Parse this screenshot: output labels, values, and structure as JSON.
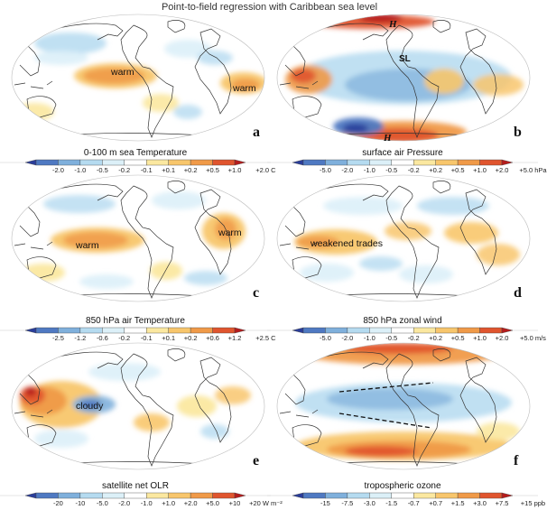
{
  "figure": {
    "title": "Point-to-field regression with Caribbean sea level"
  },
  "colors": {
    "dark_blue": "#2a3d9a",
    "blue": "#4f79c2",
    "mid_blue": "#7fb0dc",
    "light_blue": "#b5dbf0",
    "pale_blue": "#dcf0f8",
    "white": "#ffffff",
    "pale_yellow": "#fbe8a0",
    "light_orange": "#f8c66c",
    "orange": "#f09a48",
    "red_orange": "#e0552e",
    "dark_red": "#b51c1c"
  },
  "panels": [
    {
      "letter": "a",
      "annotations": [
        "warm",
        "warm"
      ],
      "colorbar": {
        "title": "0-100 m sea Temperature",
        "ticks": [
          "-2.0",
          "-1.0",
          "-0.5",
          "-0.2",
          "-0.1",
          "+0.1",
          "+0.2",
          "+0.5",
          "+1.0",
          "+2.0 C"
        ]
      }
    },
    {
      "letter": "b",
      "annotations": [
        "H",
        "SL",
        "H"
      ],
      "colorbar": {
        "title": "surface air Pressure",
        "ticks": [
          "-5.0",
          "-2.0",
          "-1.0",
          "-0.5",
          "-0.2",
          "+0.2",
          "+0.5",
          "+1.0",
          "+2.0",
          "+5.0 hPa"
        ]
      }
    },
    {
      "letter": "c",
      "annotations": [
        "warm",
        "warm"
      ],
      "colorbar": {
        "title": "850 hPa air Temperature",
        "ticks": [
          "-2.5",
          "-1.2",
          "-0.6",
          "-0.2",
          "-0.1",
          "+0.1",
          "+0.2",
          "+0.6",
          "+1.2",
          "+2.5 C"
        ]
      }
    },
    {
      "letter": "d",
      "annotations": [
        "weakened trades"
      ],
      "colorbar": {
        "title": "850 hPa zonal wind",
        "ticks": [
          "-5.0",
          "-2.0",
          "-1.0",
          "-0.5",
          "-0.2",
          "+0.2",
          "+0.5",
          "+1.0",
          "+2.0",
          "+5.0 m/s"
        ]
      }
    },
    {
      "letter": "e",
      "annotations": [
        "cloudy"
      ],
      "colorbar": {
        "title": "satellite net OLR",
        "ticks": [
          "-20",
          "-10",
          "-5.0",
          "-2.0",
          "-1.0",
          "+1.0",
          "+2.0",
          "+5.0",
          "+10",
          "+20 W m⁻²"
        ]
      }
    },
    {
      "letter": "f",
      "annotations": [],
      "colorbar": {
        "title": "tropospheric ozone",
        "ticks": [
          "-15",
          "-7.5",
          "-3.0",
          "-1.5",
          "-0.7",
          "+0.7",
          "+1.5",
          "+3.0",
          "+7.5",
          "+15 ppb"
        ]
      }
    }
  ]
}
